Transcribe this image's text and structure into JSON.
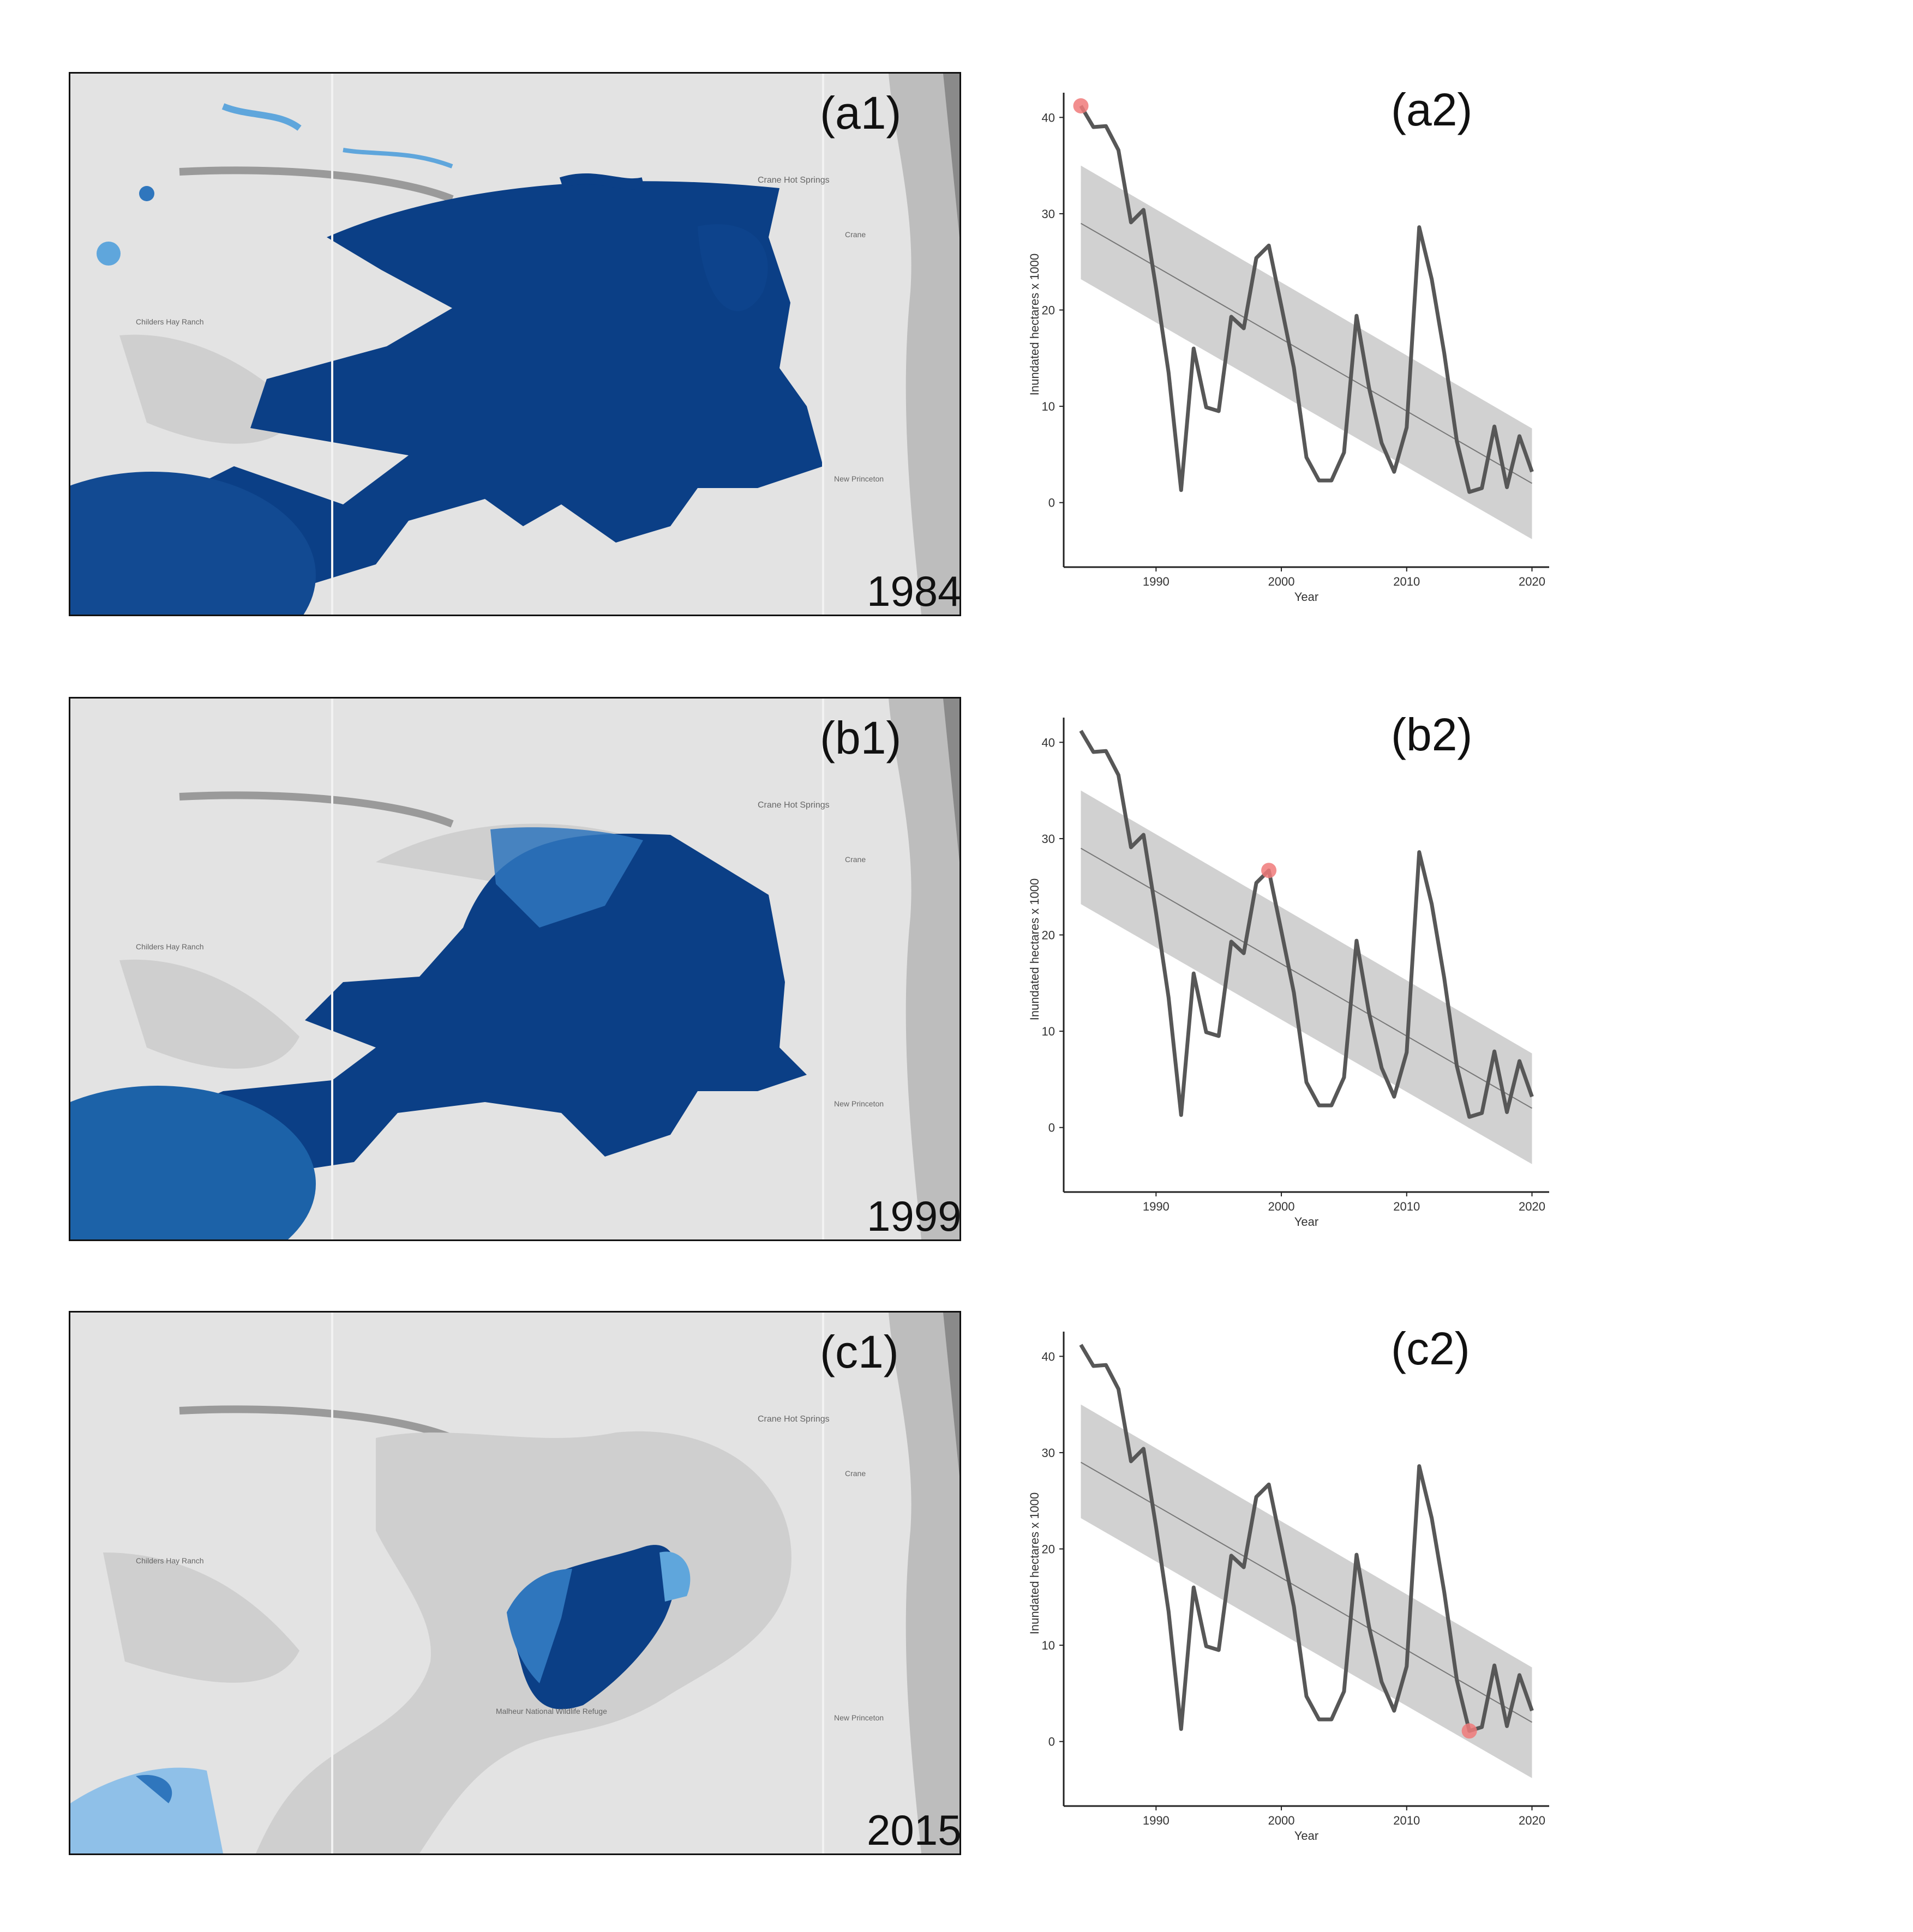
{
  "maps": [
    {
      "tag": "(a1)",
      "year": "1984",
      "extent": "large"
    },
    {
      "tag": "(b1)",
      "year": "1999",
      "extent": "medium"
    },
    {
      "tag": "(c1)",
      "year": "2015",
      "extent": "small"
    }
  ],
  "map_place_labels": {
    "crane_hot_springs": "Crane Hot Springs",
    "crane": "Crane",
    "new_princeton": "New Princeton",
    "childers_hay_ranch": "Childers Hay Ranch",
    "malheur_refuge": "Malheur National Wildlife Refuge"
  },
  "colors": {
    "water_dark": "#0b3f86",
    "water_light": "#5fa6dc",
    "land": "#e3e3e3",
    "land_shadow": "#cfcfcf",
    "line": "#575757",
    "ribbon": "#cccccc",
    "highlight": "#f07a7a"
  },
  "chart_data": [
    {
      "type": "line",
      "panel": "(a2)",
      "xlabel": "Year",
      "ylabel": "Inundated hectares x 1000",
      "xlim": [
        1983.5,
        2020.5
      ],
      "ylim": [
        -5,
        42
      ],
      "xticks": [
        1990,
        2000,
        2010,
        2020
      ],
      "yticks": [
        0,
        10,
        20,
        30,
        40
      ],
      "x": [
        1984,
        1985,
        1986,
        1987,
        1988,
        1989,
        1990,
        1991,
        1992,
        1993,
        1994,
        1995,
        1996,
        1997,
        1998,
        1999,
        2000,
        2001,
        2002,
        2003,
        2004,
        2005,
        2006,
        2007,
        2008,
        2009,
        2010,
        2011,
        2012,
        2013,
        2014,
        2015,
        2016,
        2017,
        2018,
        2019,
        2020
      ],
      "y": [
        41.2,
        39.0,
        39.1,
        36.6,
        29.1,
        30.4,
        22.3,
        13.5,
        1.3,
        16.0,
        9.9,
        9.5,
        19.3,
        18.1,
        25.4,
        26.7,
        20.4,
        14.0,
        4.7,
        2.3,
        2.3,
        5.2,
        19.4,
        11.9,
        6.2,
        3.2,
        7.8,
        28.6,
        23.2,
        15.5,
        6.4,
        1.1,
        1.5,
        7.9,
        1.6,
        6.9,
        3.2
      ],
      "trend": {
        "x0": 1984,
        "y0": 29.0,
        "x1": 2020,
        "y1": 2.0
      },
      "ci_band": {
        "upper0": 35.0,
        "upper1": 7.7,
        "lower0": 23.2,
        "lower1": -3.8
      },
      "highlight": {
        "year": 1984,
        "value": 41.2
      }
    },
    {
      "type": "line",
      "panel": "(b2)",
      "xlabel": "Year",
      "ylabel": "Inundated hectares x 1000",
      "xlim": [
        1983.5,
        2020.5
      ],
      "ylim": [
        -5,
        42
      ],
      "xticks": [
        1990,
        2000,
        2010,
        2020
      ],
      "yticks": [
        0,
        10,
        20,
        30,
        40
      ],
      "x": [
        1984,
        1985,
        1986,
        1987,
        1988,
        1989,
        1990,
        1991,
        1992,
        1993,
        1994,
        1995,
        1996,
        1997,
        1998,
        1999,
        2000,
        2001,
        2002,
        2003,
        2004,
        2005,
        2006,
        2007,
        2008,
        2009,
        2010,
        2011,
        2012,
        2013,
        2014,
        2015,
        2016,
        2017,
        2018,
        2019,
        2020
      ],
      "y": [
        41.2,
        39.0,
        39.1,
        36.6,
        29.1,
        30.4,
        22.3,
        13.5,
        1.3,
        16.0,
        9.9,
        9.5,
        19.3,
        18.1,
        25.4,
        26.7,
        20.4,
        14.0,
        4.7,
        2.3,
        2.3,
        5.2,
        19.4,
        11.9,
        6.2,
        3.2,
        7.8,
        28.6,
        23.2,
        15.5,
        6.4,
        1.1,
        1.5,
        7.9,
        1.6,
        6.9,
        3.2
      ],
      "trend": {
        "x0": 1984,
        "y0": 29.0,
        "x1": 2020,
        "y1": 2.0
      },
      "ci_band": {
        "upper0": 35.0,
        "upper1": 7.7,
        "lower0": 23.2,
        "lower1": -3.8
      },
      "highlight": {
        "year": 1999,
        "value": 26.7
      }
    },
    {
      "type": "line",
      "panel": "(c2)",
      "xlabel": "Year",
      "ylabel": "Inundated hectares x 1000",
      "xlim": [
        1983.5,
        2020.5
      ],
      "ylim": [
        -5,
        42
      ],
      "xticks": [
        1990,
        2000,
        2010,
        2020
      ],
      "yticks": [
        0,
        10,
        20,
        30,
        40
      ],
      "x": [
        1984,
        1985,
        1986,
        1987,
        1988,
        1989,
        1990,
        1991,
        1992,
        1993,
        1994,
        1995,
        1996,
        1997,
        1998,
        1999,
        2000,
        2001,
        2002,
        2003,
        2004,
        2005,
        2006,
        2007,
        2008,
        2009,
        2010,
        2011,
        2012,
        2013,
        2014,
        2015,
        2016,
        2017,
        2018,
        2019,
        2020
      ],
      "y": [
        41.2,
        39.0,
        39.1,
        36.6,
        29.1,
        30.4,
        22.3,
        13.5,
        1.3,
        16.0,
        9.9,
        9.5,
        19.3,
        18.1,
        25.4,
        26.7,
        20.4,
        14.0,
        4.7,
        2.3,
        2.3,
        5.2,
        19.4,
        11.9,
        6.2,
        3.2,
        7.8,
        28.6,
        23.2,
        15.5,
        6.4,
        1.1,
        1.5,
        7.9,
        1.6,
        6.9,
        3.2
      ],
      "trend": {
        "x0": 1984,
        "y0": 29.0,
        "x1": 2020,
        "y1": 2.0
      },
      "ci_band": {
        "upper0": 35.0,
        "upper1": 7.7,
        "lower0": 23.2,
        "lower1": -3.8
      },
      "highlight": {
        "year": 2015,
        "value": 1.1
      }
    }
  ]
}
